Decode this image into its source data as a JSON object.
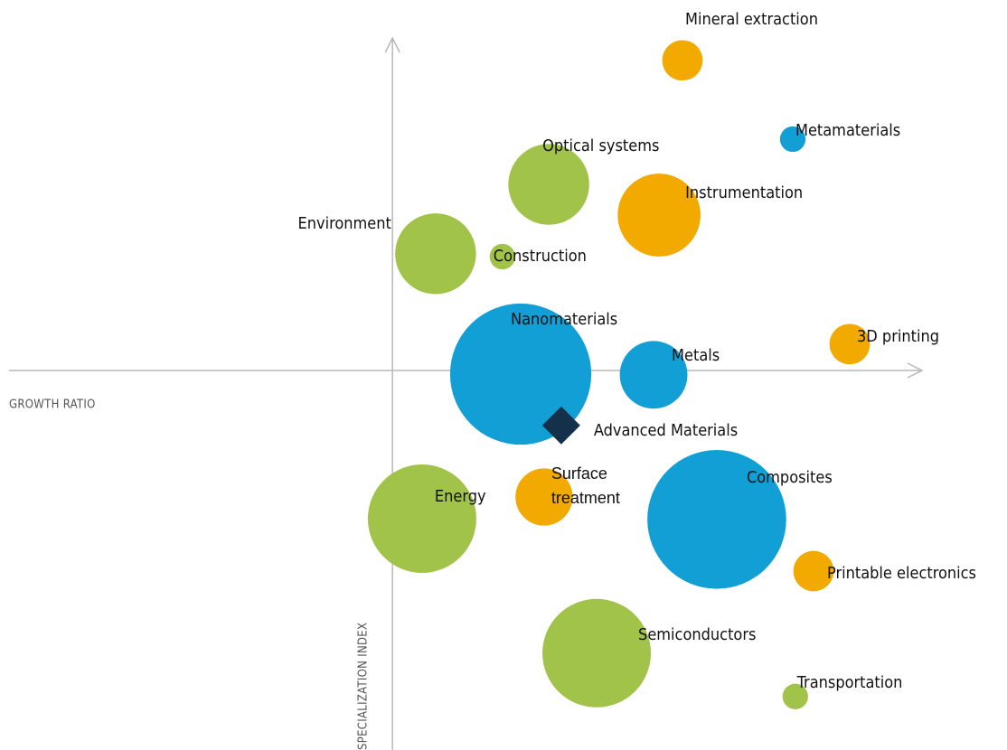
{
  "chart_data": {
    "type": "bubble",
    "x_label": "GROWTH RATIO",
    "y_label": "SPECIALIZATION INDEX",
    "xlim": [
      -0.05,
      2.45
    ],
    "ylim": [
      -0.05,
      1.95
    ],
    "axis_cross": {
      "x": 1,
      "y": 1
    },
    "points": [
      {
        "label": "Mineral extraction",
        "x": 1.794,
        "y": 1.858,
        "size": 5,
        "color": "#f2a900"
      },
      {
        "label": "Metamaterials",
        "x": 2.096,
        "y": 1.64,
        "size": 2,
        "color": "#119fd6"
      },
      {
        "label": "Optical systems",
        "x": 1.428,
        "y": 1.515,
        "size": 20,
        "color": "#a1c34a"
      },
      {
        "label": "Instrumentation",
        "x": 1.73,
        "y": 1.43,
        "size": 21,
        "color": "#f2a900"
      },
      {
        "label": "Environment",
        "x": 1.118,
        "y": 1.323,
        "size": 20,
        "color": "#a1c34a"
      },
      {
        "label": "Construction",
        "x": 1.301,
        "y": 1.315,
        "size": 2,
        "color": "#a1c34a"
      },
      {
        "label": "Nanomaterials",
        "x": 1.351,
        "y": 0.99,
        "size": 61,
        "color": "#119fd6"
      },
      {
        "label": "3D printing",
        "x": 2.252,
        "y": 1.073,
        "size": 5,
        "color": "#f2a900"
      },
      {
        "label": "Metals",
        "x": 1.715,
        "y": 0.988,
        "size": 14,
        "color": "#119fd6"
      },
      {
        "label": "Surface treatment",
        "x": 1.415,
        "y": 0.65,
        "size": 10,
        "color": "#f2a900"
      },
      {
        "label": "Energy",
        "x": 1.081,
        "y": 0.59,
        "size": 36,
        "color": "#a1c34a"
      },
      {
        "label": "Composites",
        "x": 1.888,
        "y": 0.588,
        "size": 59,
        "color": "#119fd6"
      },
      {
        "label": "Printable electronics",
        "x": 2.153,
        "y": 0.445,
        "size": 5,
        "color": "#f2a900"
      },
      {
        "label": "Semiconductors",
        "x": 1.559,
        "y": 0.218,
        "size": 36,
        "color": "#a1c34a"
      },
      {
        "label": "Transportation",
        "x": 2.103,
        "y": 0.098,
        "size": 2,
        "color": "#a1c34a"
      }
    ],
    "marker": {
      "label": "Advanced Materials",
      "x": 1.462,
      "y": 0.848,
      "color": "#14304a"
    }
  }
}
